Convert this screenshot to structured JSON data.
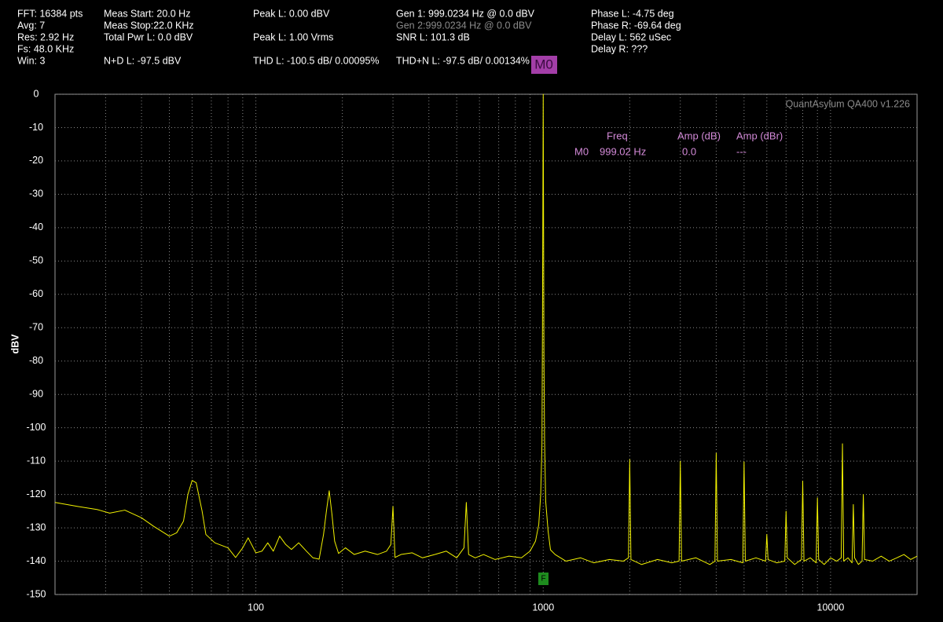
{
  "header": {
    "items": [
      "FFT: 16384 pts",
      "Avg: 7",
      "Res: 2.92 Hz",
      "Fs: 48.0 KHz",
      "Win: 3",
      "Meas Start: 20.0 Hz",
      "Meas Stop:22.0 KHz",
      "Total Pwr L: 0.0 dBV",
      "N+D L: -97.5 dBV",
      "Peak L: 0.00 dBV",
      "Peak L: 1.00 Vrms",
      "THD L: -100.5 dB/ 0.00095%",
      "Gen 1: 999.0234 Hz @ 0.0  dBV",
      "Gen 2:999.0234 Hz @ 0.0  dBV",
      "SNR L: 101.3 dB",
      "THD+N L: -97.5 dB/ 0.00134%",
      "Phase L: -4.75 deg",
      "Phase R: -69.64 deg",
      "Delay L: 562 uSec",
      "Delay R: ???"
    ]
  },
  "marker_table": {
    "headers": [
      "Freq",
      "Amp (dB)",
      "Amp (dBr)"
    ],
    "row": [
      "M0",
      "999.02 Hz",
      "0.0",
      "---"
    ]
  },
  "fundamental_tag": "F",
  "watermark": "QuantAsylum QA400 v1.226",
  "chart_data": {
    "type": "line",
    "y_label": "dBV",
    "log_x": true,
    "grid": true,
    "color": "#f2f200",
    "xlim": [
      20,
      20000
    ],
    "ylim": [
      -150,
      0
    ],
    "xticks": [
      100,
      1000,
      10000
    ],
    "xminor": [
      30,
      40,
      50,
      60,
      70,
      80,
      90,
      200,
      300,
      400,
      500,
      600,
      700,
      800,
      900,
      2000,
      3000,
      4000,
      5000,
      6000,
      7000,
      8000,
      9000
    ],
    "yticks": [
      0,
      -10,
      -20,
      -30,
      -40,
      -50,
      -60,
      -70,
      -80,
      -90,
      -100,
      -110,
      -120,
      -130,
      -140,
      -150
    ],
    "x": [
      20,
      24,
      28,
      31,
      35,
      40,
      44,
      50,
      53,
      56,
      58,
      60,
      62,
      65,
      67,
      72,
      80,
      85,
      90,
      94,
      100,
      105,
      110,
      115,
      121,
      127,
      133,
      141,
      150,
      158,
      166,
      172,
      176,
      180,
      184,
      188,
      194,
      205,
      220,
      240,
      265,
      285,
      295,
      300,
      305,
      320,
      350,
      380,
      420,
      460,
      500,
      530,
      540,
      550,
      580,
      620,
      680,
      760,
      840,
      900,
      940,
      965,
      980,
      990,
      994,
      1000,
      1006,
      1011,
      1020,
      1040,
      1060,
      1100,
      1200,
      1350,
      1500,
      1700,
      1900,
      1980,
      2000,
      2020,
      2200,
      2500,
      2800,
      2970,
      3000,
      3030,
      3400,
      3800,
      3960,
      4000,
      4040,
      4500,
      4950,
      5000,
      5050,
      5500,
      5940,
      6000,
      6060,
      6500,
      6930,
      7000,
      7070,
      7500,
      7920,
      8000,
      8080,
      8500,
      8910,
      9000,
      9090,
      9500,
      10000,
      10500,
      10890,
      11000,
      11110,
      11500,
      11880,
      12000,
      12120,
      12500,
      12870,
      13000,
      13130,
      14000,
      15000,
      16000,
      17000,
      18000,
      19000,
      20000
    ],
    "values": [
      -122.4,
      -123.6,
      -124.5,
      -125.6,
      -124.7,
      -127,
      -129.5,
      -132.5,
      -131.5,
      -128,
      -120,
      -115.8,
      -116.5,
      -125,
      -132,
      -134.5,
      -136,
      -138.9,
      -136,
      -133,
      -137.5,
      -137,
      -134.5,
      -137,
      -132.5,
      -135,
      -136.5,
      -134.5,
      -137,
      -139,
      -139.4,
      -132,
      -125,
      -118.9,
      -126,
      -134,
      -137.7,
      -136,
      -138,
      -137,
      -138,
      -137,
      -135,
      -123.6,
      -138.9,
      -138,
      -137.5,
      -139,
      -138,
      -137,
      -139,
      -136,
      -122.4,
      -138,
      -139,
      -138,
      -139.5,
      -138.5,
      -139,
      -137,
      -134,
      -129,
      -120,
      -105,
      -70,
      0,
      -80,
      -104,
      -122,
      -131,
      -136.6,
      -138,
      -140,
      -139,
      -140.5,
      -139.5,
      -140,
      -139,
      -109.5,
      -139.5,
      -141,
      -139.5,
      -140.5,
      -140,
      -110,
      -140,
      -139,
      -141,
      -140,
      -107.6,
      -140,
      -139.5,
      -140.5,
      -110.2,
      -140,
      -139,
      -140,
      -132,
      -139.5,
      -140.5,
      -140,
      -125,
      -139,
      -141,
      -139.5,
      -116,
      -140,
      -139,
      -140.5,
      -121,
      -139.5,
      -141,
      -139,
      -140,
      -139,
      -104.8,
      -140,
      -139,
      -140.5,
      -123,
      -139,
      -141,
      -140,
      -120,
      -139.5,
      -140,
      -138.5,
      -140,
      -139,
      -138,
      -139.5,
      -138.5
    ]
  }
}
